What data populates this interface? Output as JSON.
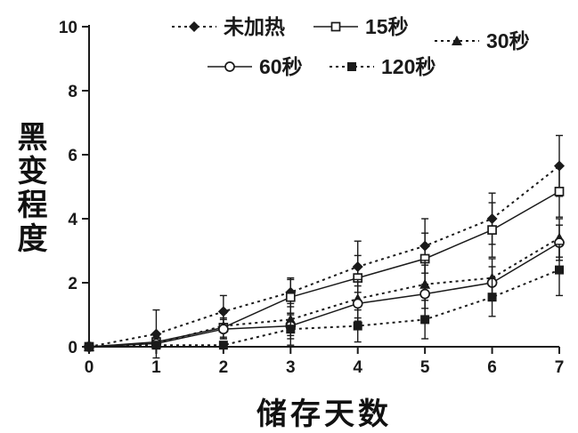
{
  "chart_data": {
    "type": "line",
    "title": "",
    "xlabel": "储存天数",
    "ylabel": "黑变程度",
    "xlim": [
      0,
      7
    ],
    "ylim": [
      0,
      10
    ],
    "xticks": [
      0,
      1,
      2,
      3,
      4,
      5,
      6,
      7
    ],
    "yticks": [
      0,
      2,
      4,
      6,
      8,
      10
    ],
    "grid": false,
    "legend_position": "top",
    "x": [
      0,
      1,
      2,
      3,
      4,
      5,
      6,
      7
    ],
    "series": [
      {
        "name": "未加热",
        "marker": "diamond-filled",
        "line": "dotted",
        "values": [
          0,
          0.4,
          1.1,
          1.7,
          2.5,
          3.15,
          4.0,
          5.65
        ],
        "errors": [
          0,
          0.75,
          0.5,
          0.45,
          0.8,
          0.85,
          0.8,
          0.95
        ]
      },
      {
        "name": "15秒",
        "marker": "square-open",
        "line": "solid",
        "values": [
          0,
          0.15,
          0.6,
          1.55,
          2.15,
          2.75,
          3.65,
          4.85
        ],
        "errors": [
          0,
          0.15,
          0.3,
          0.55,
          0.7,
          0.8,
          0.85,
          0.8
        ]
      },
      {
        "name": "30秒",
        "marker": "triangle-filled",
        "line": "dotted",
        "values": [
          0,
          0.1,
          0.65,
          0.85,
          1.5,
          1.95,
          2.15,
          3.4
        ],
        "errors": [
          0,
          0.1,
          0.4,
          0.5,
          0.6,
          0.75,
          0.6,
          0.6
        ]
      },
      {
        "name": "60秒",
        "marker": "circle-open",
        "line": "solid",
        "values": [
          0,
          0.1,
          0.55,
          0.65,
          1.35,
          1.65,
          2.0,
          3.25
        ],
        "errors": [
          0,
          0.1,
          0.3,
          0.4,
          0.55,
          0.9,
          0.5,
          0.55
        ]
      },
      {
        "name": "120秒",
        "marker": "square-filled",
        "line": "dotted",
        "values": [
          0,
          0.05,
          0.05,
          0.55,
          0.65,
          0.85,
          1.55,
          2.4
        ],
        "errors": [
          0,
          0.05,
          0.1,
          0.5,
          0.5,
          0.6,
          0.6,
          0.8
        ]
      }
    ],
    "ink_color": "#1a1a1a"
  }
}
